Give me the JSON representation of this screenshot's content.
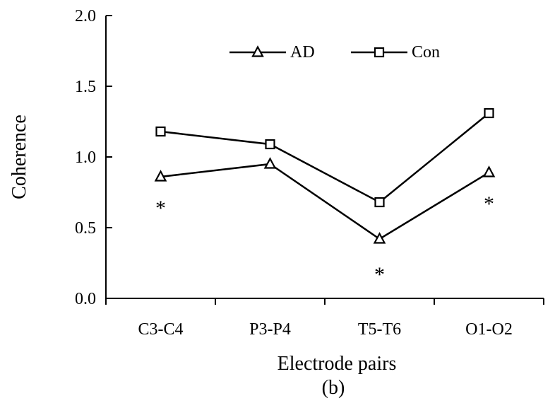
{
  "chart_data": {
    "type": "line",
    "xlabel": "Electrode pairs",
    "ylabel": "Coherence",
    "caption": "(b)",
    "categories": [
      "C3-C4",
      "P3-P4",
      "T5-T6",
      "O1-O2"
    ],
    "series": [
      {
        "name": "AD",
        "marker": "triangle",
        "values": [
          0.86,
          0.95,
          0.42,
          0.89
        ]
      },
      {
        "name": "Con",
        "marker": "square",
        "values": [
          1.18,
          1.09,
          0.68,
          1.31
        ]
      }
    ],
    "ylim": [
      0.0,
      2.0
    ],
    "yticks": [
      "0.0",
      "0.5",
      "1.0",
      "1.5",
      "2.0"
    ],
    "yticks_values": [
      0.0,
      0.5,
      1.0,
      1.5,
      2.0
    ],
    "legend_position": "top",
    "grid": false,
    "annotations": [
      {
        "text": "*",
        "category": "C3-C4",
        "y": 0.66
      },
      {
        "text": "*",
        "category": "T5-T6",
        "y": 0.19
      },
      {
        "text": "*",
        "category": "O1-O2",
        "y": 0.69
      }
    ],
    "colors": {
      "line": "#000000",
      "marker_fill": "#ffffff"
    }
  }
}
